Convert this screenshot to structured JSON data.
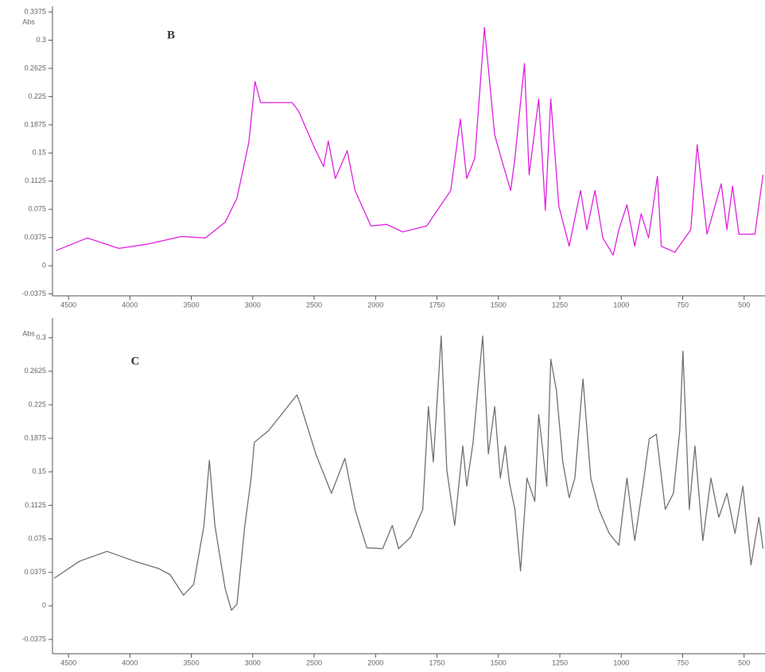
{
  "chart_data": [
    {
      "type": "line",
      "annotation": "B",
      "y_label": "Abs",
      "color": "#e020e0",
      "xlim": [
        4630,
        415
      ],
      "xticks": [
        4500,
        4000,
        3500,
        3000,
        2500,
        2000,
        1750,
        1500,
        1250,
        1000,
        750,
        500
      ],
      "ylim": [
        -0.04,
        0.345
      ],
      "yticks": [
        -0.0375,
        0,
        0.0375,
        0.075,
        0.1125,
        0.15,
        0.1875,
        0.225,
        0.2625,
        0.3,
        0.3375
      ],
      "x": [
        4603,
        4346,
        4090,
        3865,
        3577,
        3385,
        3224,
        3128,
        3032,
        2981,
        2936,
        2808,
        2679,
        2628,
        2487,
        2423,
        2385,
        2327,
        2231,
        2167,
        2038,
        1954,
        1889,
        1792,
        1694,
        1655,
        1629,
        1596,
        1557,
        1515,
        1479,
        1450,
        1433,
        1394,
        1375,
        1336,
        1309,
        1287,
        1254,
        1212,
        1166,
        1140,
        1107,
        1075,
        1033,
        1010,
        977,
        945,
        919,
        889,
        853,
        837,
        782,
        717,
        691,
        651,
        593,
        570,
        547,
        521,
        456,
        423
      ],
      "values": [
        0.0201,
        0.037,
        0.023,
        0.0285,
        0.039,
        0.037,
        0.058,
        0.09,
        0.164,
        0.245,
        0.217,
        0.217,
        0.217,
        0.206,
        0.153,
        0.132,
        0.166,
        0.116,
        0.153,
        0.1,
        0.053,
        0.055,
        0.045,
        0.053,
        0.1,
        0.195,
        0.116,
        0.143,
        0.317,
        0.174,
        0.132,
        0.1,
        0.143,
        0.269,
        0.121,
        0.222,
        0.074,
        0.222,
        0.079,
        0.026,
        0.1,
        0.048,
        0.1,
        0.037,
        0.014,
        0.048,
        0.081,
        0.026,
        0.069,
        0.037,
        0.119,
        0.026,
        0.018,
        0.048,
        0.161,
        0.042,
        0.109,
        0.048,
        0.106,
        0.042,
        0.042,
        0.121
      ]
    },
    {
      "type": "line",
      "annotation": "C",
      "y_label": "Abs",
      "color": "#707070",
      "xlim": [
        4630,
        415
      ],
      "xticks": [
        4500,
        4000,
        3500,
        3000,
        2500,
        2000,
        1750,
        1500,
        1250,
        1000,
        750,
        500
      ],
      "ylim": [
        -0.0535,
        0.322
      ],
      "yticks": [
        -0.0375,
        0,
        0.0375,
        0.075,
        0.1125,
        0.15,
        0.1875,
        0.225,
        0.2625,
        0.3
      ],
      "x": [
        4615,
        4410,
        4186,
        3962,
        3769,
        3673,
        3564,
        3481,
        3397,
        3353,
        3308,
        3224,
        3173,
        3128,
        3064,
        3013,
        2987,
        2872,
        2744,
        2641,
        2615,
        2487,
        2359,
        2250,
        2167,
        2071,
        1971,
        1932,
        1906,
        1857,
        1808,
        1785,
        1765,
        1733,
        1710,
        1678,
        1645,
        1629,
        1603,
        1564,
        1541,
        1515,
        1492,
        1472,
        1456,
        1433,
        1410,
        1384,
        1352,
        1336,
        1303,
        1287,
        1264,
        1238,
        1212,
        1189,
        1156,
        1124,
        1091,
        1049,
        1010,
        977,
        945,
        912,
        886,
        857,
        821,
        788,
        762,
        749,
        723,
        700,
        668,
        635,
        603,
        570,
        537,
        505,
        472,
        440,
        423
      ],
      "values": [
        0.031,
        0.05,
        0.061,
        0.05,
        0.042,
        0.035,
        0.012,
        0.024,
        0.09,
        0.163,
        0.09,
        0.019,
        -0.005,
        0.002,
        0.09,
        0.143,
        0.183,
        0.196,
        0.218,
        0.236,
        0.227,
        0.17,
        0.126,
        0.165,
        0.108,
        0.065,
        0.064,
        0.09,
        0.064,
        0.077,
        0.108,
        0.223,
        0.161,
        0.302,
        0.152,
        0.09,
        0.179,
        0.134,
        0.183,
        0.302,
        0.17,
        0.223,
        0.143,
        0.179,
        0.139,
        0.108,
        0.039,
        0.143,
        0.117,
        0.214,
        0.134,
        0.276,
        0.241,
        0.161,
        0.121,
        0.143,
        0.254,
        0.143,
        0.108,
        0.081,
        0.068,
        0.143,
        0.073,
        0.134,
        0.187,
        0.192,
        0.108,
        0.126,
        0.196,
        0.285,
        0.108,
        0.179,
        0.073,
        0.143,
        0.099,
        0.126,
        0.081,
        0.134,
        0.046,
        0.099,
        0.064
      ]
    }
  ]
}
